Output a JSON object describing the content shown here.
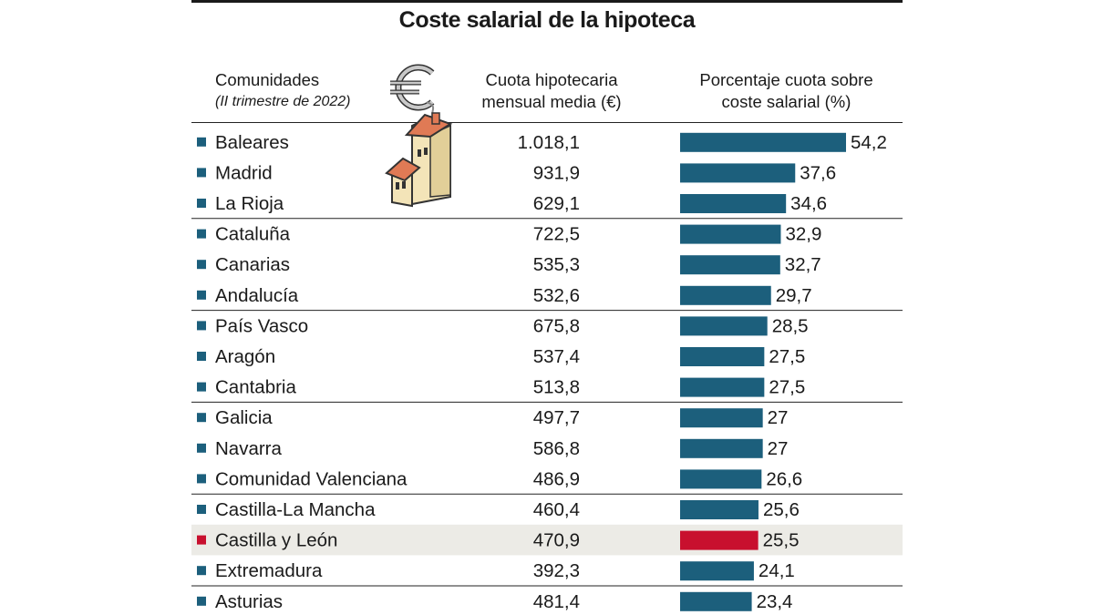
{
  "colors": {
    "bar": "#1c5f7c",
    "highlight": "#c8102e",
    "highlight_row_bg": "#ecebe6"
  },
  "icons": {
    "illustration": "house-euro-icon"
  },
  "chart_data": {
    "type": "bar",
    "orientation": "horizontal",
    "title": "Coste salarial de la hipoteca",
    "columns": {
      "region": "Comunidades",
      "region_sub": "(II trimestre de 2022)",
      "quota_line1": "Cuota hipotecaria",
      "quota_line2": "mensual media (€)",
      "pct_line1": "Porcentaje cuota sobre",
      "pct_line2": "coste salarial (%)"
    },
    "xlim": [
      0,
      54.2
    ],
    "highlight": "Castilla y León",
    "groups_of": 3,
    "rows": [
      {
        "region": "Baleares",
        "quota": "1.018,1",
        "pct": 54.2,
        "pct_label": "54,2"
      },
      {
        "region": "Madrid",
        "quota": "931,9",
        "pct": 37.6,
        "pct_label": "37,6"
      },
      {
        "region": "La Rioja",
        "quota": "629,1",
        "pct": 34.6,
        "pct_label": "34,6"
      },
      {
        "region": "Cataluña",
        "quota": "722,5",
        "pct": 32.9,
        "pct_label": "32,9"
      },
      {
        "region": "Canarias",
        "quota": "535,3",
        "pct": 32.7,
        "pct_label": "32,7"
      },
      {
        "region": "Andalucía",
        "quota": "532,6",
        "pct": 29.7,
        "pct_label": "29,7"
      },
      {
        "region": "País Vasco",
        "quota": "675,8",
        "pct": 28.5,
        "pct_label": "28,5"
      },
      {
        "region": "Aragón",
        "quota": "537,4",
        "pct": 27.5,
        "pct_label": "27,5"
      },
      {
        "region": "Cantabria",
        "quota": "513,8",
        "pct": 27.5,
        "pct_label": "27,5"
      },
      {
        "region": "Galicia",
        "quota": "497,7",
        "pct": 27,
        "pct_label": "27"
      },
      {
        "region": "Navarra",
        "quota": "586,8",
        "pct": 27,
        "pct_label": "27"
      },
      {
        "region": "Comunidad Valenciana",
        "quota": "486,9",
        "pct": 26.6,
        "pct_label": "26,6"
      },
      {
        "region": "Castilla-La Mancha",
        "quota": "460,4",
        "pct": 25.6,
        "pct_label": "25,6"
      },
      {
        "region": "Castilla y León",
        "quota": "470,9",
        "pct": 25.5,
        "pct_label": "25,5"
      },
      {
        "region": "Extremadura",
        "quota": "392,3",
        "pct": 24.1,
        "pct_label": "24,1"
      },
      {
        "region": "Asturias",
        "quota": "481,4",
        "pct": 23.4,
        "pct_label": "23,4"
      }
    ]
  }
}
